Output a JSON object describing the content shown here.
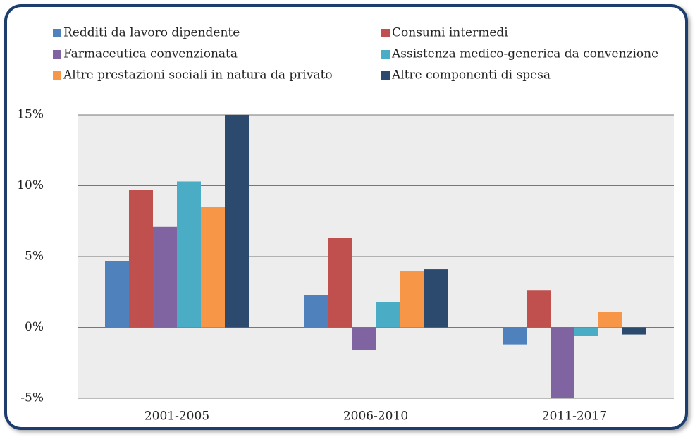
{
  "chart_data": {
    "type": "bar",
    "categories": [
      "2001-2005",
      "2006-2010",
      "2011-2017"
    ],
    "series": [
      {
        "name": "Redditi da lavoro dipendente",
        "color": "#4f81bd",
        "values": [
          4.7,
          2.3,
          -1.2
        ]
      },
      {
        "name": "Consumi intermedi",
        "color": "#c0504d",
        "values": [
          9.7,
          6.3,
          2.6
        ]
      },
      {
        "name": "Farmaceutica convenzionata",
        "color": "#8064a2",
        "values": [
          7.1,
          -1.6,
          -5
        ]
      },
      {
        "name": "Assistenza medico-generica da convenzione",
        "color": "#4bacc6",
        "values": [
          10.3,
          1.8,
          -0.6
        ]
      },
      {
        "name": "Altre prestazioni sociali in natura da privato",
        "color": "#f79646",
        "values": [
          8.5,
          4.0,
          1.1
        ]
      },
      {
        "name": "Altre componenti di spesa",
        "color": "#2c4a6e",
        "values": [
          15,
          4.1,
          -0.5
        ]
      }
    ],
    "ylim": [
      -5,
      15
    ],
    "yticks": [
      {
        "value": -5,
        "label": "-5%"
      },
      {
        "value": 0,
        "label": "0%"
      },
      {
        "value": 5,
        "label": "5%"
      },
      {
        "value": 10,
        "label": "10%"
      },
      {
        "value": 15,
        "label": "15%"
      }
    ],
    "grid": true,
    "legend": "top"
  }
}
